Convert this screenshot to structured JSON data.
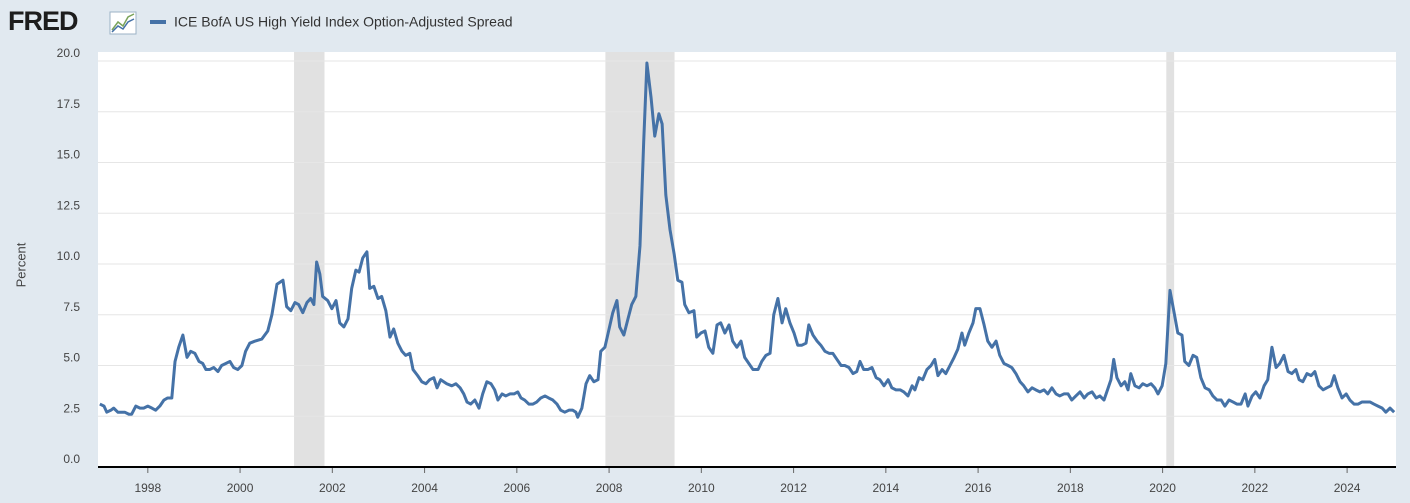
{
  "logo": "FRED",
  "chart_data": {
    "type": "line",
    "y_label": "Percent",
    "xlim": [
      1996.92,
      2025.06
    ],
    "xticks": [
      1998,
      2000,
      2002,
      2004,
      2006,
      2008,
      2010,
      2012,
      2014,
      2016,
      2018,
      2020,
      2022,
      2024
    ],
    "ylim": [
      0,
      20
    ],
    "yticks": [
      {
        "value": 0,
        "label": "0.0"
      },
      2.5,
      {
        "value": 5,
        "label": "5.0"
      },
      7.5,
      {
        "value": 10,
        "label": "10.0"
      },
      12.5,
      {
        "value": 15,
        "label": "15.0"
      },
      17.5,
      {
        "value": 20,
        "label": "20.0"
      }
    ],
    "grid": true,
    "recessions": [
      {
        "start": 2001.17,
        "end": 2001.83
      },
      {
        "start": 2007.92,
        "end": 2009.42
      },
      {
        "start": 2020.08,
        "end": 2020.25
      }
    ],
    "recession_color": "#e1e1e1",
    "x": [
      1996.96,
      1997.05,
      1997.11,
      1997.2,
      1997.26,
      1997.35,
      1997.44,
      1997.5,
      1997.59,
      1997.65,
      1997.74,
      1997.83,
      1997.91,
      1998.0,
      1998.09,
      1998.17,
      1998.26,
      1998.35,
      1998.43,
      1998.52,
      1998.59,
      1998.67,
      1998.76,
      1998.85,
      1998.93,
      1999.02,
      1999.11,
      1999.19,
      1999.26,
      1999.34,
      1999.43,
      1999.52,
      1999.6,
      1999.69,
      1999.78,
      1999.86,
      1999.95,
      2000.04,
      2000.12,
      2000.21,
      2000.32,
      2000.47,
      2000.6,
      2000.69,
      2000.8,
      2000.93,
      2001.01,
      2001.1,
      2001.19,
      2001.27,
      2001.36,
      2001.45,
      2001.53,
      2001.6,
      2001.66,
      2001.73,
      2001.79,
      2001.9,
      2001.99,
      2002.08,
      2002.16,
      2002.25,
      2002.34,
      2002.42,
      2002.51,
      2002.58,
      2002.66,
      2002.75,
      2002.81,
      2002.9,
      2002.99,
      2003.07,
      2003.16,
      2003.25,
      2003.33,
      2003.42,
      2003.51,
      2003.59,
      2003.68,
      2003.75,
      2003.85,
      2003.94,
      2004.03,
      2004.11,
      2004.2,
      2004.27,
      2004.35,
      2004.48,
      2004.59,
      2004.68,
      2004.77,
      2004.85,
      2004.92,
      2005.0,
      2005.09,
      2005.18,
      2005.26,
      2005.35,
      2005.44,
      2005.52,
      2005.59,
      2005.68,
      2005.76,
      2005.85,
      2005.94,
      2006.02,
      2006.09,
      2006.17,
      2006.26,
      2006.35,
      2006.43,
      2006.52,
      2006.61,
      2006.69,
      2006.78,
      2006.87,
      2006.95,
      2007.04,
      2007.13,
      2007.21,
      2007.28,
      2007.32,
      2007.41,
      2007.5,
      2007.58,
      2007.67,
      2007.76,
      2007.82,
      2007.91,
      2008.0,
      2008.08,
      2008.17,
      2008.23,
      2008.32,
      2008.41,
      2008.49,
      2008.58,
      2008.67,
      2008.75,
      2008.82,
      2008.91,
      2008.99,
      2009.08,
      2009.15,
      2009.23,
      2009.32,
      2009.41,
      2009.49,
      2009.58,
      2009.64,
      2009.73,
      2009.84,
      2009.9,
      2009.99,
      2010.08,
      2010.16,
      2010.25,
      2010.34,
      2010.42,
      2010.51,
      2010.6,
      2010.68,
      2010.77,
      2010.86,
      2010.94,
      2011.03,
      2011.12,
      2011.23,
      2011.31,
      2011.4,
      2011.49,
      2011.57,
      2011.66,
      2011.75,
      2011.83,
      2011.92,
      2012.01,
      2012.09,
      2012.18,
      2012.27,
      2012.33,
      2012.42,
      2012.51,
      2012.59,
      2012.68,
      2012.77,
      2012.85,
      2012.94,
      2013.03,
      2013.11,
      2013.2,
      2013.29,
      2013.37,
      2013.44,
      2013.52,
      2013.61,
      2013.7,
      2013.79,
      2013.87,
      2013.96,
      2014.05,
      2014.13,
      2014.22,
      2014.31,
      2014.39,
      2014.48,
      2014.57,
      2014.63,
      2014.72,
      2014.8,
      2014.89,
      2014.98,
      2015.06,
      2015.13,
      2015.22,
      2015.3,
      2015.39,
      2015.48,
      2015.56,
      2015.65,
      2015.71,
      2015.8,
      2015.89,
      2015.95,
      2016.04,
      2016.13,
      2016.21,
      2016.3,
      2016.39,
      2016.47,
      2016.56,
      2016.65,
      2016.73,
      2016.82,
      2016.91,
      2016.99,
      2017.08,
      2017.17,
      2017.25,
      2017.34,
      2017.43,
      2017.51,
      2017.6,
      2017.69,
      2017.77,
      2017.86,
      2017.95,
      2018.03,
      2018.12,
      2018.21,
      2018.3,
      2018.38,
      2018.47,
      2018.56,
      2018.64,
      2018.73,
      2018.82,
      2018.88,
      2018.94,
      2019.01,
      2019.1,
      2019.18,
      2019.25,
      2019.31,
      2019.4,
      2019.49,
      2019.57,
      2019.66,
      2019.75,
      2019.83,
      2019.9,
      2019.99,
      2020.07,
      2020.16,
      2020.25,
      2020.33,
      2020.42,
      2020.48,
      2020.57,
      2020.66,
      2020.74,
      2020.83,
      2020.92,
      2021.01,
      2021.09,
      2021.18,
      2021.27,
      2021.35,
      2021.44,
      2021.53,
      2021.61,
      2021.7,
      2021.79,
      2021.85,
      2021.94,
      2022.02,
      2022.11,
      2022.2,
      2022.28,
      2022.37,
      2022.46,
      2022.54,
      2022.63,
      2022.72,
      2022.8,
      2022.89,
      2022.96,
      2023.04,
      2023.13,
      2023.22,
      2023.3,
      2023.39,
      2023.48,
      2023.56,
      2023.65,
      2023.72,
      2023.8,
      2023.89,
      2023.98,
      2024.06,
      2024.15,
      2024.24,
      2024.32,
      2024.41,
      2024.5,
      2024.58,
      2024.67,
      2024.76,
      2024.84,
      2024.93,
      2025.02
    ],
    "series": [
      {
        "name": "ICE BofA US High Yield Index Option-Adjusted Spread",
        "color": "#4572a7",
        "values": [
          3.1,
          3.0,
          2.7,
          2.8,
          2.9,
          2.7,
          2.7,
          2.7,
          2.6,
          2.6,
          3.0,
          2.9,
          2.9,
          3.0,
          2.9,
          2.8,
          3.0,
          3.3,
          3.4,
          3.4,
          5.2,
          5.9,
          6.5,
          5.4,
          5.7,
          5.6,
          5.2,
          5.1,
          4.8,
          4.8,
          4.9,
          4.7,
          5.0,
          5.1,
          5.2,
          4.9,
          4.8,
          5.0,
          5.7,
          6.1,
          6.2,
          6.3,
          6.7,
          7.5,
          9.0,
          9.2,
          7.9,
          7.7,
          8.1,
          8.0,
          7.6,
          8.1,
          8.3,
          8.0,
          10.1,
          9.5,
          8.4,
          8.2,
          7.8,
          8.2,
          7.1,
          6.9,
          7.3,
          8.8,
          9.7,
          9.6,
          10.3,
          10.6,
          8.8,
          8.9,
          8.3,
          8.4,
          7.7,
          6.4,
          6.8,
          6.1,
          5.7,
          5.5,
          5.6,
          4.8,
          4.5,
          4.2,
          4.1,
          4.3,
          4.4,
          3.9,
          4.3,
          4.1,
          4.0,
          4.1,
          3.9,
          3.6,
          3.2,
          3.1,
          3.3,
          2.9,
          3.6,
          4.2,
          4.1,
          3.8,
          3.3,
          3.6,
          3.5,
          3.6,
          3.6,
          3.7,
          3.4,
          3.3,
          3.1,
          3.1,
          3.2,
          3.4,
          3.5,
          3.4,
          3.3,
          3.1,
          2.8,
          2.7,
          2.8,
          2.8,
          2.7,
          2.45,
          2.9,
          4.1,
          4.5,
          4.2,
          4.3,
          5.7,
          5.9,
          6.8,
          7.6,
          8.2,
          6.9,
          6.5,
          7.3,
          8.0,
          8.4,
          10.9,
          16.0,
          19.9,
          18.2,
          16.3,
          17.4,
          16.9,
          13.4,
          11.7,
          10.5,
          9.2,
          9.1,
          8.0,
          7.6,
          7.7,
          6.4,
          6.6,
          6.7,
          5.9,
          5.6,
          7.0,
          7.1,
          6.6,
          7.0,
          6.2,
          5.9,
          6.2,
          5.4,
          5.1,
          4.8,
          4.8,
          5.2,
          5.5,
          5.6,
          7.5,
          8.3,
          7.1,
          7.8,
          7.1,
          6.6,
          6.0,
          6.0,
          6.1,
          7.0,
          6.5,
          6.2,
          6.0,
          5.7,
          5.6,
          5.6,
          5.3,
          5.0,
          5.0,
          4.9,
          4.6,
          4.7,
          5.2,
          4.8,
          4.8,
          4.9,
          4.4,
          4.3,
          4.0,
          4.3,
          3.9,
          3.8,
          3.8,
          3.7,
          3.5,
          4.0,
          3.8,
          4.4,
          4.3,
          4.8,
          5.0,
          5.3,
          4.5,
          4.8,
          4.6,
          5.0,
          5.4,
          5.8,
          6.6,
          6.0,
          6.6,
          7.1,
          7.8,
          7.8,
          7.0,
          6.2,
          5.9,
          6.2,
          5.5,
          5.1,
          5.0,
          4.9,
          4.6,
          4.2,
          4.0,
          3.7,
          3.9,
          3.8,
          3.7,
          3.8,
          3.6,
          3.9,
          3.6,
          3.5,
          3.6,
          3.6,
          3.3,
          3.5,
          3.7,
          3.4,
          3.6,
          3.7,
          3.4,
          3.5,
          3.3,
          3.9,
          4.3,
          5.3,
          4.4,
          4.0,
          4.2,
          3.8,
          4.6,
          4.0,
          3.9,
          4.1,
          4.0,
          4.1,
          3.9,
          3.6,
          4.0,
          5.1,
          8.7,
          7.6,
          6.6,
          6.5,
          5.2,
          5.0,
          5.5,
          5.4,
          4.4,
          3.9,
          3.8,
          3.5,
          3.3,
          3.3,
          3.0,
          3.3,
          3.2,
          3.1,
          3.1,
          3.6,
          3.0,
          3.5,
          3.7,
          3.4,
          4.0,
          4.3,
          5.9,
          4.9,
          5.1,
          5.5,
          4.7,
          4.6,
          4.8,
          4.3,
          4.2,
          4.6,
          4.5,
          4.7,
          4.0,
          3.8,
          3.9,
          4.0,
          4.5,
          3.9,
          3.4,
          3.6,
          3.3,
          3.1,
          3.1,
          3.2,
          3.2,
          3.2,
          3.1,
          3.0,
          2.9,
          2.7,
          2.9,
          2.7
        ]
      }
    ]
  }
}
